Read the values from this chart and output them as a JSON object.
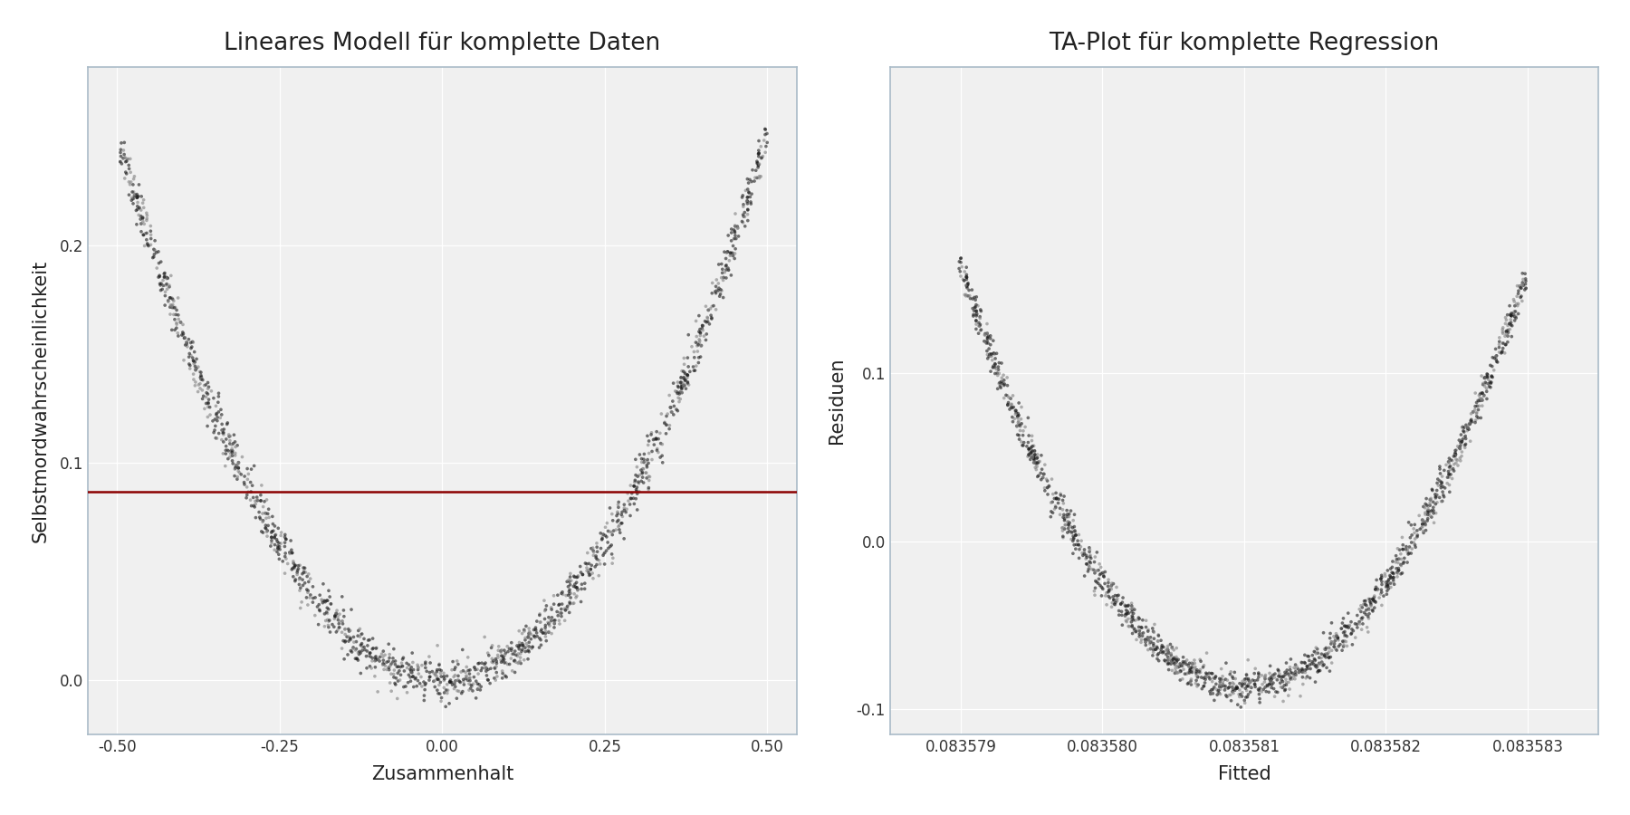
{
  "title_left": "Lineares Modell für komplette Daten",
  "title_right": "TA-Plot für komplette Regression",
  "xlabel_left": "Zusammenhalt",
  "ylabel_left": "Selbstmordwahrscheinlichkeit",
  "xlabel_right": "Fitted",
  "ylabel_right": "Residuen",
  "xlim_left": [
    -0.545,
    0.545
  ],
  "ylim_left": [
    -0.025,
    0.282
  ],
  "xlim_right": [
    0.0835785,
    0.0835835
  ],
  "ylim_right": [
    -0.115,
    0.282
  ],
  "hline_color": "#8B0000",
  "dot_color_dark": "#1a1a1a",
  "dot_color_light": "#808080",
  "background_color": "#ffffff",
  "panel_color": "#f0f0f0",
  "grid_color": "#ffffff",
  "axis_color": "#aabbc8",
  "n_points": 1500,
  "seed": 42,
  "title_fontsize": 19,
  "label_fontsize": 15,
  "tick_fontsize": 12,
  "dot_size": 7,
  "dot_alpha": 0.6,
  "x_ticks_left": [
    -0.5,
    -0.25,
    0.0,
    0.25,
    0.5
  ],
  "y_ticks_left": [
    0.0,
    0.1,
    0.2
  ],
  "x_ticks_right": [
    0.083579,
    0.08358,
    0.083581,
    0.083582,
    0.083583
  ],
  "y_ticks_right": [
    -0.1,
    0.0,
    0.1
  ]
}
